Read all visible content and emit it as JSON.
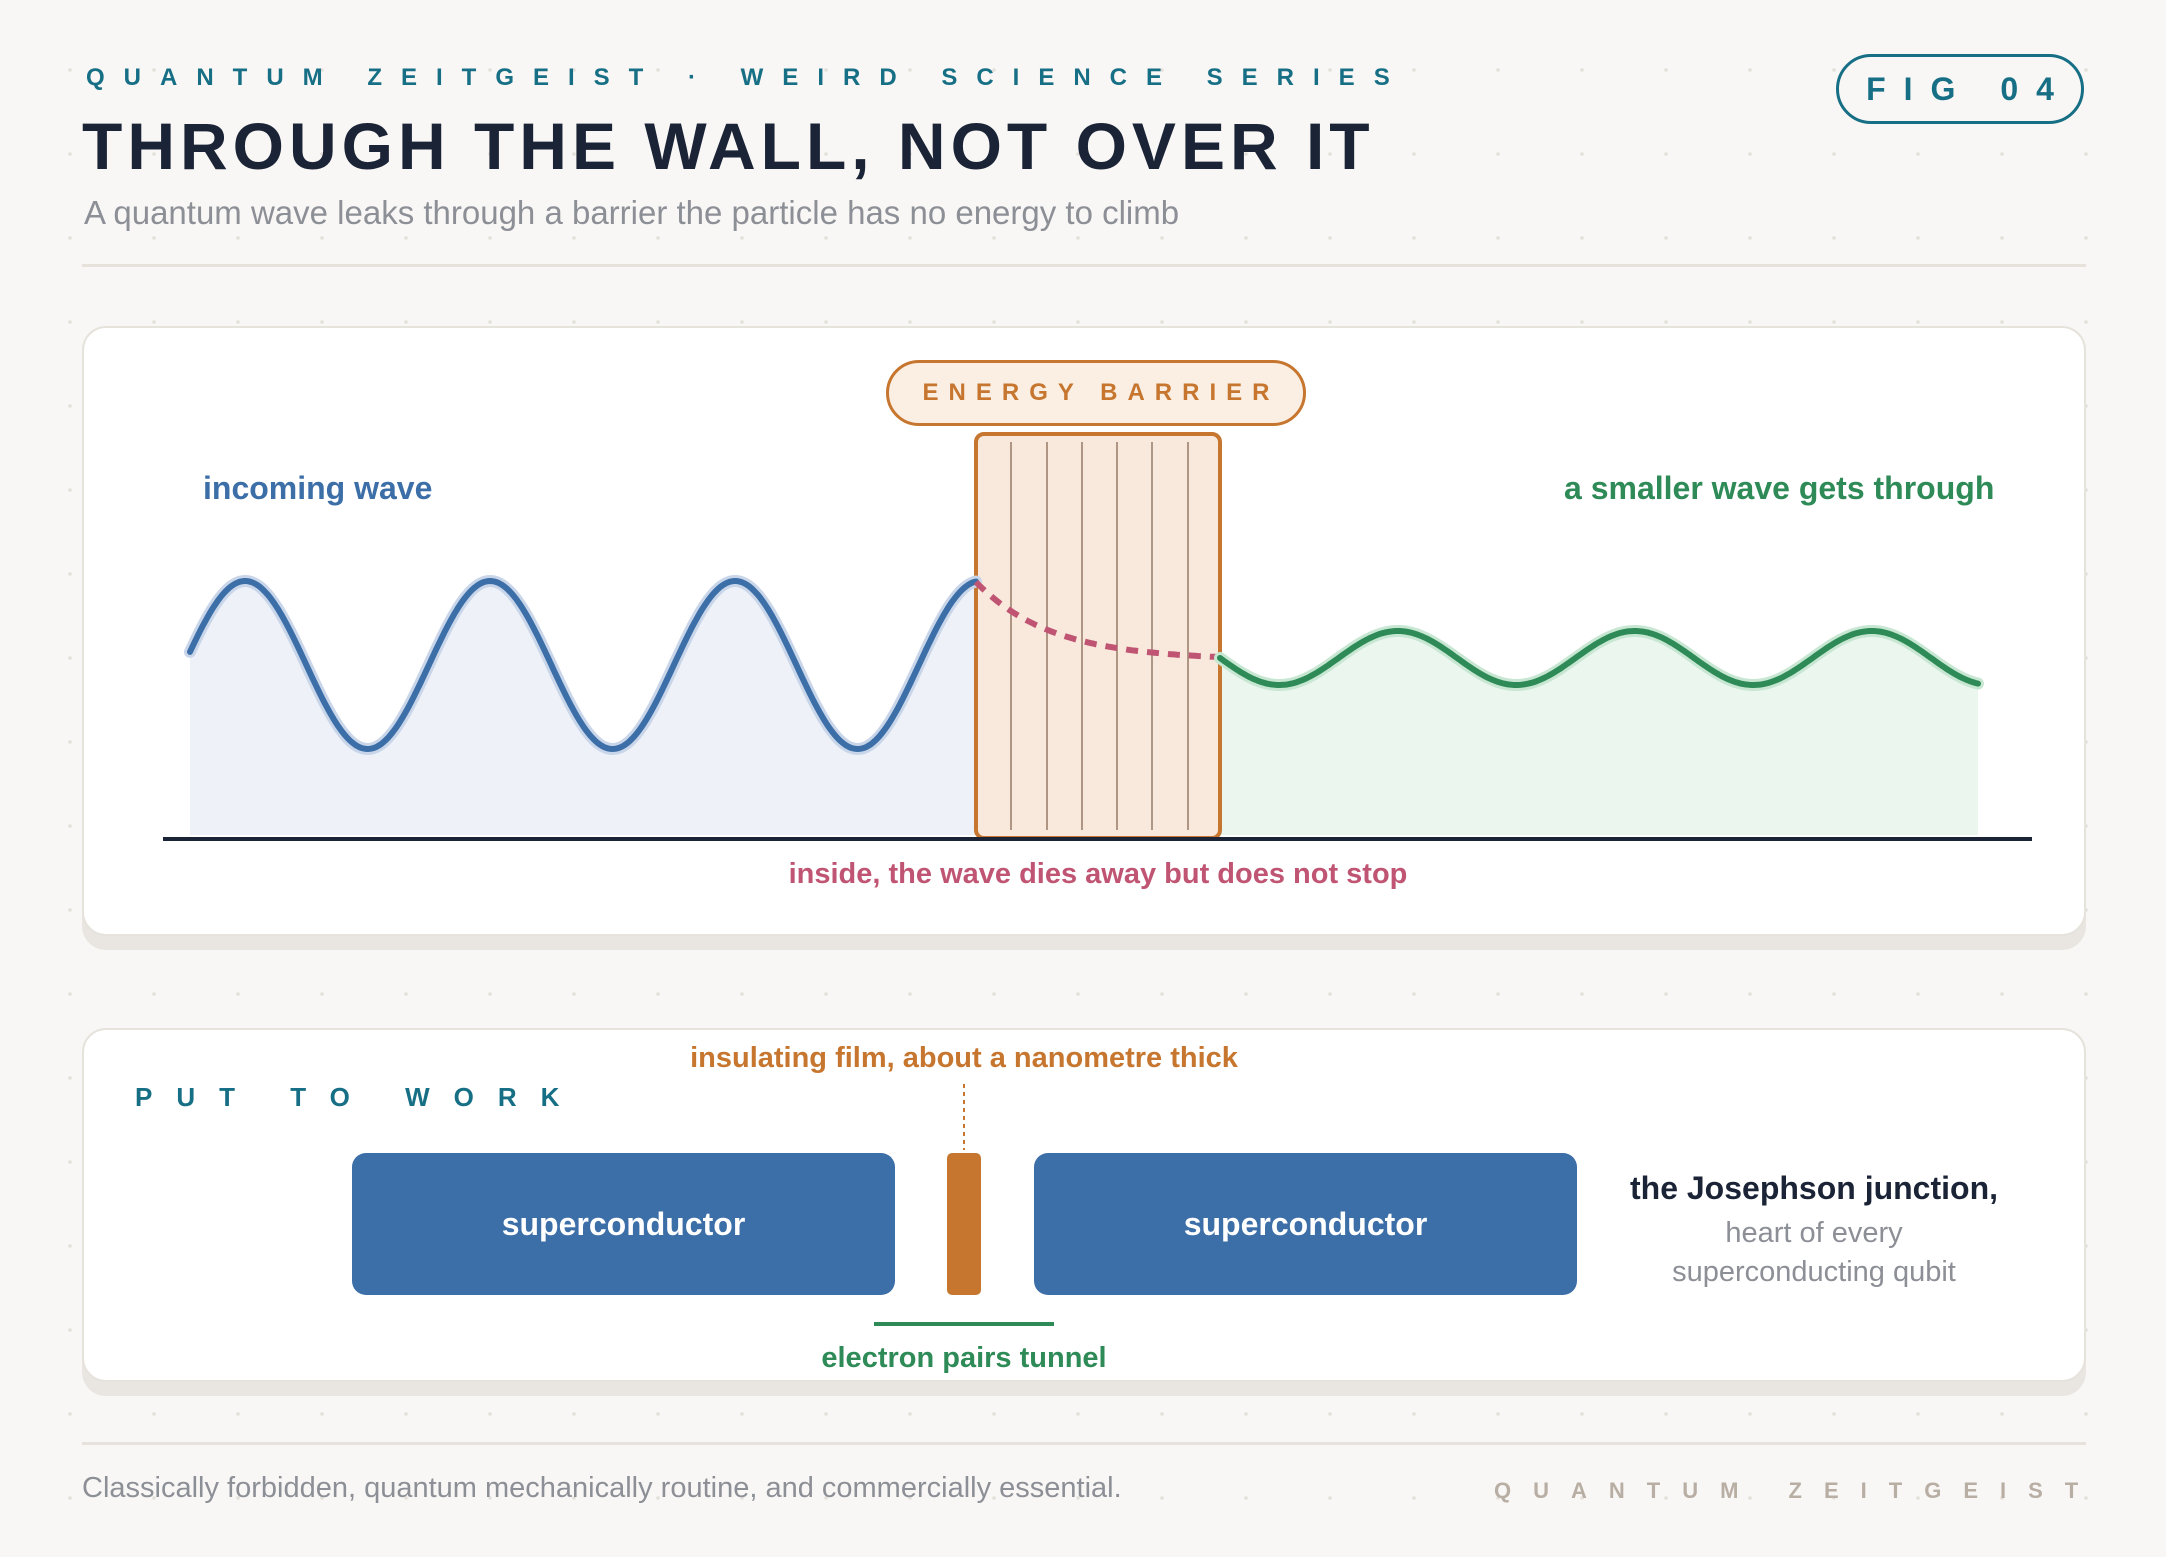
{
  "header": {
    "kicker": "QUANTUM ZEITGEIST · WEIRD SCIENCE SERIES",
    "title": "THROUGH THE WALL, NOT OVER IT",
    "subtitle": "A quantum wave leaks through a barrier the particle has no energy to climb",
    "figure_badge": "FIG 04"
  },
  "tunnelling_panel": {
    "barrier_label": "ENERGY BARRIER",
    "incoming_label": "incoming wave",
    "transmitted_label": "a smaller wave gets through",
    "inside_label": "inside, the wave dies away but does not stop"
  },
  "work_panel": {
    "section_label": "PUT TO WORK",
    "film_label": "insulating film, about a nanometre thick",
    "left_block": "superconductor",
    "right_block": "superconductor",
    "tunnel_label": "electron pairs tunnel",
    "caption_title": "the Josephson junction,",
    "caption_line1": "heart of every",
    "caption_line2": "superconducting qubit"
  },
  "footer": {
    "tagline": "Classically forbidden, quantum mechanically routine, and commercially essential.",
    "brand": "QUANTUM ZEITGEIST"
  },
  "colors": {
    "incoming": "#3c6ea7",
    "transmitted": "#2e8b57",
    "barrier": "#c6762e",
    "decay": "#c05573",
    "teal": "#176f86",
    "ink": "#1b2436"
  }
}
